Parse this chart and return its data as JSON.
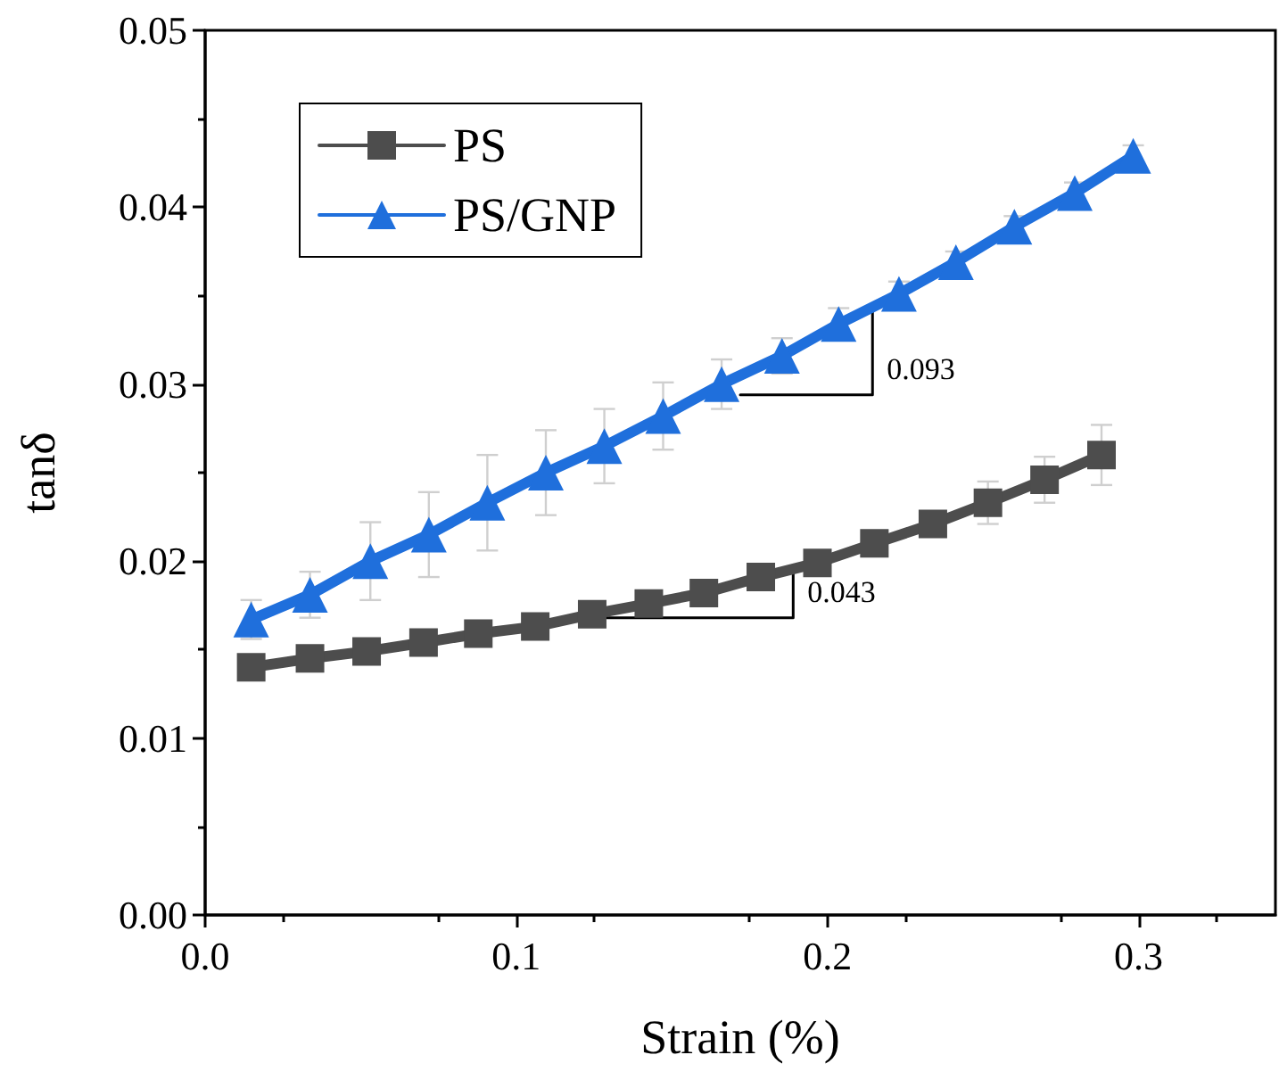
{
  "chart_data": {
    "type": "line",
    "xlabel": "Strain (%)",
    "ylabel": "tanδ",
    "xlim": [
      0,
      0.344
    ],
    "xticks": [
      {
        "value": 0,
        "label": "0.0"
      },
      {
        "value": 0.1,
        "label": "0.1"
      },
      {
        "value": 0.2,
        "label": "0.2"
      },
      {
        "value": 0.3,
        "label": "0.3"
      }
    ],
    "ylim": [
      0,
      0.05
    ],
    "yticks": [
      {
        "value": 0,
        "label": "0.00"
      },
      {
        "value": 0.01,
        "label": "0.01"
      },
      {
        "value": 0.02,
        "label": "0.02"
      },
      {
        "value": 0.03,
        "label": "0.03"
      },
      {
        "value": 0.04,
        "label": "0.04"
      },
      {
        "value": 0.05,
        "label": "0.05"
      }
    ],
    "grid": false,
    "legend": "top left",
    "line_style": "solid",
    "series": [
      {
        "name": "PS",
        "color": "#4d4d4d",
        "marker": "square",
        "x": [
          0.0148,
          0.0337,
          0.0519,
          0.0702,
          0.0878,
          0.1061,
          0.1244,
          0.1426,
          0.1603,
          0.1786,
          0.1968,
          0.2151,
          0.2339,
          0.2516,
          0.2698,
          0.2881
        ],
        "values": [
          0.014,
          0.0145,
          0.0149,
          0.0154,
          0.0159,
          0.0163,
          0.017,
          0.0176,
          0.0182,
          0.0191,
          0.0199,
          0.021,
          0.0221,
          0.0233,
          0.0246,
          0.026
        ],
        "errors": [
          0.0004,
          0.0004,
          0.0004,
          0.0005,
          0.0004,
          0.0004,
          0.0004,
          0.0004,
          0.0004,
          0.0004,
          0.0005,
          0.0006,
          0.0007,
          0.0012,
          0.0013,
          0.0017
        ]
      },
      {
        "name": "PS/GNP",
        "color": "#1f6fdc",
        "marker": "triangle",
        "x": [
          0.0148,
          0.0337,
          0.0531,
          0.0719,
          0.0907,
          0.1095,
          0.1283,
          0.1472,
          0.166,
          0.1854,
          0.2036,
          0.223,
          0.2413,
          0.2601,
          0.2795,
          0.2983
        ],
        "values": [
          0.0167,
          0.0181,
          0.02,
          0.0215,
          0.0233,
          0.025,
          0.0265,
          0.0282,
          0.03,
          0.0316,
          0.0334,
          0.0351,
          0.0369,
          0.0389,
          0.0408,
          0.0429
        ],
        "errors": [
          0.0011,
          0.0013,
          0.0022,
          0.0024,
          0.0027,
          0.0024,
          0.0021,
          0.0019,
          0.0014,
          0.001,
          0.0009,
          0.0007,
          0.0006,
          0.0006,
          0.0006,
          0.0006
        ]
      },
      {
        "color": "#000000",
        "marker": "none",
        "x": [
          0.172,
          0.2145,
          0.2145
        ],
        "values": [
          0.0294,
          0.0294,
          0.0343
        ]
      },
      {
        "color": "#000000",
        "marker": "none",
        "x": [
          0.129,
          0.189,
          0.189
        ],
        "values": [
          0.0168,
          0.0168,
          0.0196
        ]
      }
    ],
    "annotations": [
      "0.093",
      "0.043"
    ]
  }
}
